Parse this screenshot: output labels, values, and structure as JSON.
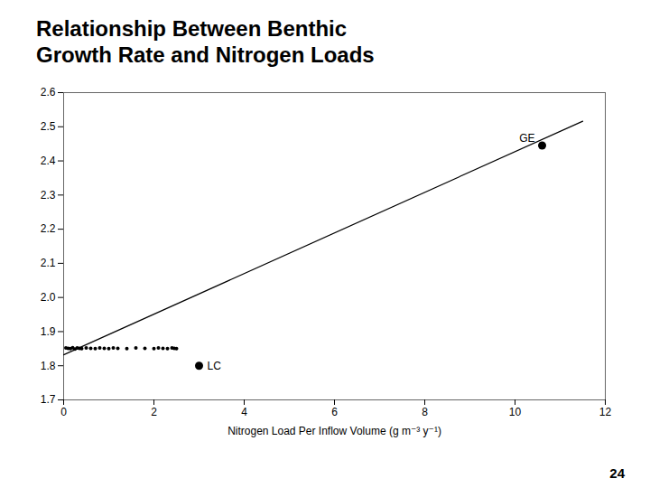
{
  "chart_data": {
    "type": "scatter",
    "title": [
      "Relationship Between Benthic",
      "Growth Rate and Nitrogen Loads"
    ],
    "xlabel": "Nitrogen Load Per Inflow Volume (g m⁻³ y⁻¹)",
    "xlim": [
      0,
      12
    ],
    "xticks": [
      0,
      2,
      4,
      6,
      8,
      10,
      12
    ],
    "ylim": [
      1.7,
      2.6
    ],
    "yticks": [
      1.7,
      1.8,
      1.9,
      {
        "value": 2.0,
        "label": "2.0"
      },
      2.1,
      2.2,
      2.3,
      2.4,
      2.5,
      2.6
    ],
    "grid": false,
    "series": [
      {
        "type": "scatter",
        "marker": "o",
        "color": "#000000",
        "x": [
          0.05,
          0.1,
          0.15,
          0.2,
          0.25,
          0.3,
          0.35,
          0.4,
          0.5,
          0.6,
          0.7,
          0.8,
          0.9,
          1.0,
          1.1,
          1.2,
          1.4,
          1.6,
          1.8,
          2.0,
          2.1,
          2.2,
          2.3,
          2.4,
          2.45,
          2.5
        ],
        "values": [
          1.852,
          1.851,
          1.85,
          1.853,
          1.849,
          1.852,
          1.851,
          1.85,
          1.852,
          1.851,
          1.85,
          1.852,
          1.851,
          1.85,
          1.852,
          1.851,
          1.85,
          1.852,
          1.851,
          1.85,
          1.852,
          1.851,
          1.85,
          1.852,
          1.851,
          1.85
        ]
      },
      {
        "type": "scatter",
        "marker": "o",
        "color": "#000000",
        "x": [
          10.6,
          3.0
        ],
        "values": [
          2.445,
          1.8
        ],
        "labels": [
          "GE",
          "LC"
        ]
      },
      {
        "type": "line",
        "line_style": "solid",
        "color": "#000000",
        "x": [
          0.0,
          11.5
        ],
        "values": [
          1.832,
          2.51625
        ]
      }
    ],
    "annotations": [
      "24"
    ]
  }
}
